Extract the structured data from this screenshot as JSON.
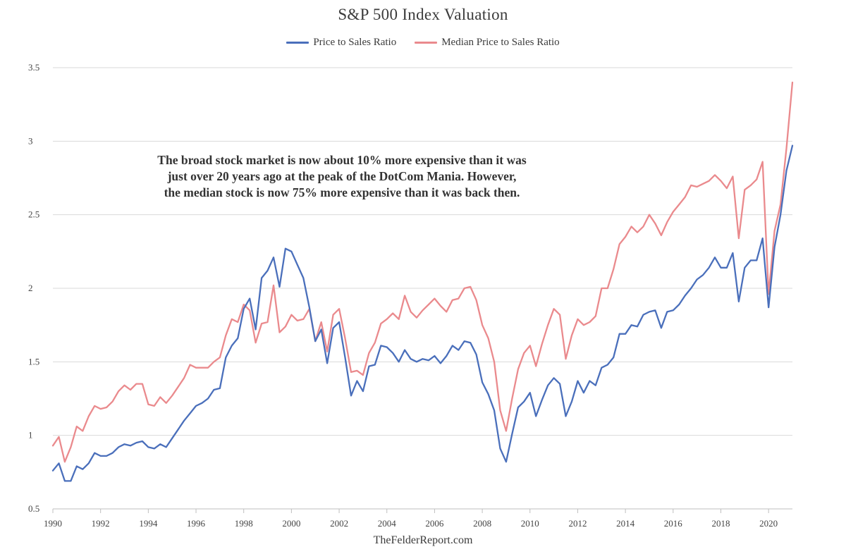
{
  "title": "S&P 500 Index Valuation",
  "source": "TheFelderReport.com",
  "annotation": [
    "The broad stock market is now about 10% more expensive than it was",
    "just over 20 years ago at the peak of the DotCom Mania. However,",
    "the median stock is now 75% more expensive than it was back then."
  ],
  "legend": {
    "placement": "top-center",
    "items": [
      {
        "label": "Price to Sales Ratio",
        "color": "#4a6fbb"
      },
      {
        "label": "Median Price to Sales Ratio",
        "color": "#ea8a8d"
      }
    ]
  },
  "chart_data": {
    "type": "line",
    "title": "S&P 500 Index Valuation",
    "xlabel": "",
    "ylabel": "",
    "xlim": [
      1990,
      2021
    ],
    "ylim": [
      0.5,
      3.5
    ],
    "x_ticks": [
      "1990",
      "1992",
      "1994",
      "1996",
      "1998",
      "2000",
      "2002",
      "2004",
      "2006",
      "2008",
      "2010",
      "2012",
      "2014",
      "2016",
      "2018",
      "2020"
    ],
    "y_ticks": [
      "0.5",
      "1",
      "1.5",
      "2",
      "2.5",
      "3",
      "3.5"
    ],
    "grid": "horizontal",
    "series": [
      {
        "name": "Price to Sales Ratio",
        "color": "#4a6fbb",
        "x": [
          1990.0,
          1990.25,
          1990.5,
          1990.75,
          1991.0,
          1991.25,
          1991.5,
          1991.75,
          1992.0,
          1992.25,
          1992.5,
          1992.75,
          1993.0,
          1993.25,
          1993.5,
          1993.75,
          1994.0,
          1994.25,
          1994.5,
          1994.75,
          1995.0,
          1995.25,
          1995.5,
          1995.75,
          1996.0,
          1996.25,
          1996.5,
          1996.75,
          1997.0,
          1997.25,
          1997.5,
          1997.75,
          1998.0,
          1998.25,
          1998.5,
          1998.75,
          1999.0,
          1999.25,
          1999.5,
          1999.75,
          2000.0,
          2000.25,
          2000.5,
          2000.75,
          2001.0,
          2001.25,
          2001.5,
          2001.75,
          2002.0,
          2002.25,
          2002.5,
          2002.75,
          2003.0,
          2003.25,
          2003.5,
          2003.75,
          2004.0,
          2004.25,
          2004.5,
          2004.75,
          2005.0,
          2005.25,
          2005.5,
          2005.75,
          2006.0,
          2006.25,
          2006.5,
          2006.75,
          2007.0,
          2007.25,
          2007.5,
          2007.75,
          2008.0,
          2008.25,
          2008.5,
          2008.75,
          2009.0,
          2009.25,
          2009.5,
          2009.75,
          2010.0,
          2010.25,
          2010.5,
          2010.75,
          2011.0,
          2011.25,
          2011.5,
          2011.75,
          2012.0,
          2012.25,
          2012.5,
          2012.75,
          2013.0,
          2013.25,
          2013.5,
          2013.75,
          2014.0,
          2014.25,
          2014.5,
          2014.75,
          2015.0,
          2015.25,
          2015.5,
          2015.75,
          2016.0,
          2016.25,
          2016.5,
          2016.75,
          2017.0,
          2017.25,
          2017.5,
          2017.75,
          2018.0,
          2018.25,
          2018.5,
          2018.75,
          2019.0,
          2019.25,
          2019.5,
          2019.75,
          2020.0,
          2020.25,
          2020.5,
          2020.75,
          2021.0
        ],
        "values": [
          0.76,
          0.81,
          0.69,
          0.69,
          0.79,
          0.77,
          0.81,
          0.88,
          0.86,
          0.86,
          0.88,
          0.92,
          0.94,
          0.93,
          0.95,
          0.96,
          0.92,
          0.91,
          0.94,
          0.92,
          0.98,
          1.04,
          1.1,
          1.15,
          1.2,
          1.22,
          1.25,
          1.31,
          1.32,
          1.53,
          1.61,
          1.66,
          1.86,
          1.93,
          1.72,
          2.07,
          2.12,
          2.21,
          2.01,
          2.27,
          2.25,
          2.16,
          2.07,
          1.87,
          1.64,
          1.72,
          1.49,
          1.73,
          1.77,
          1.53,
          1.27,
          1.37,
          1.3,
          1.47,
          1.48,
          1.61,
          1.6,
          1.56,
          1.5,
          1.58,
          1.52,
          1.5,
          1.52,
          1.51,
          1.54,
          1.49,
          1.54,
          1.61,
          1.58,
          1.64,
          1.63,
          1.55,
          1.36,
          1.28,
          1.17,
          0.91,
          0.82,
          1.01,
          1.19,
          1.23,
          1.29,
          1.13,
          1.24,
          1.34,
          1.39,
          1.35,
          1.13,
          1.23,
          1.37,
          1.29,
          1.37,
          1.34,
          1.46,
          1.48,
          1.53,
          1.69,
          1.69,
          1.75,
          1.74,
          1.82,
          1.84,
          1.85,
          1.73,
          1.84,
          1.85,
          1.89,
          1.95,
          2.0,
          2.06,
          2.09,
          2.14,
          2.21,
          2.14,
          2.14,
          2.24,
          1.91,
          2.14,
          2.19,
          2.19,
          2.34,
          1.87,
          2.28,
          2.5,
          2.8,
          2.97
        ]
      },
      {
        "name": "Median Price to Sales Ratio",
        "color": "#ea8a8d",
        "x": [
          1990.0,
          1990.25,
          1990.5,
          1990.75,
          1991.0,
          1991.25,
          1991.5,
          1991.75,
          1992.0,
          1992.25,
          1992.5,
          1992.75,
          1993.0,
          1993.25,
          1993.5,
          1993.75,
          1994.0,
          1994.25,
          1994.5,
          1994.75,
          1995.0,
          1995.25,
          1995.5,
          1995.75,
          1996.0,
          1996.25,
          1996.5,
          1996.75,
          1997.0,
          1997.25,
          1997.5,
          1997.75,
          1998.0,
          1998.25,
          1998.5,
          1998.75,
          1999.0,
          1999.25,
          1999.5,
          1999.75,
          2000.0,
          2000.25,
          2000.5,
          2000.75,
          2001.0,
          2001.25,
          2001.5,
          2001.75,
          2002.0,
          2002.25,
          2002.5,
          2002.75,
          2003.0,
          2003.25,
          2003.5,
          2003.75,
          2004.0,
          2004.25,
          2004.5,
          2004.75,
          2005.0,
          2005.25,
          2005.5,
          2005.75,
          2006.0,
          2006.25,
          2006.5,
          2006.75,
          2007.0,
          2007.25,
          2007.5,
          2007.75,
          2008.0,
          2008.25,
          2008.5,
          2008.75,
          2009.0,
          2009.25,
          2009.5,
          2009.75,
          2010.0,
          2010.25,
          2010.5,
          2010.75,
          2011.0,
          2011.25,
          2011.5,
          2011.75,
          2012.0,
          2012.25,
          2012.5,
          2012.75,
          2013.0,
          2013.25,
          2013.5,
          2013.75,
          2014.0,
          2014.25,
          2014.5,
          2014.75,
          2015.0,
          2015.25,
          2015.5,
          2015.75,
          2016.0,
          2016.25,
          2016.5,
          2016.75,
          2017.0,
          2017.25,
          2017.5,
          2017.75,
          2018.0,
          2018.25,
          2018.5,
          2018.75,
          2019.0,
          2019.25,
          2019.5,
          2019.75,
          2020.0,
          2020.25,
          2020.5,
          2020.75,
          2021.0
        ],
        "values": [
          0.93,
          0.99,
          0.82,
          0.92,
          1.06,
          1.03,
          1.13,
          1.2,
          1.18,
          1.19,
          1.23,
          1.3,
          1.34,
          1.31,
          1.35,
          1.35,
          1.21,
          1.2,
          1.26,
          1.22,
          1.27,
          1.33,
          1.39,
          1.48,
          1.46,
          1.46,
          1.46,
          1.5,
          1.53,
          1.68,
          1.79,
          1.77,
          1.89,
          1.85,
          1.63,
          1.76,
          1.77,
          2.02,
          1.7,
          1.74,
          1.82,
          1.78,
          1.79,
          1.86,
          1.64,
          1.77,
          1.57,
          1.82,
          1.86,
          1.66,
          1.43,
          1.44,
          1.41,
          1.56,
          1.63,
          1.76,
          1.79,
          1.83,
          1.79,
          1.95,
          1.84,
          1.8,
          1.85,
          1.89,
          1.93,
          1.88,
          1.84,
          1.92,
          1.93,
          2.0,
          2.01,
          1.92,
          1.75,
          1.66,
          1.5,
          1.17,
          1.03,
          1.25,
          1.45,
          1.56,
          1.61,
          1.47,
          1.62,
          1.75,
          1.86,
          1.82,
          1.52,
          1.68,
          1.79,
          1.75,
          1.77,
          1.81,
          2.0,
          2.0,
          2.13,
          2.3,
          2.35,
          2.42,
          2.38,
          2.42,
          2.5,
          2.44,
          2.36,
          2.45,
          2.52,
          2.57,
          2.62,
          2.7,
          2.69,
          2.71,
          2.73,
          2.77,
          2.73,
          2.68,
          2.76,
          2.34,
          2.67,
          2.7,
          2.74,
          2.86,
          1.96,
          2.39,
          2.57,
          2.95,
          3.4
        ]
      }
    ]
  }
}
